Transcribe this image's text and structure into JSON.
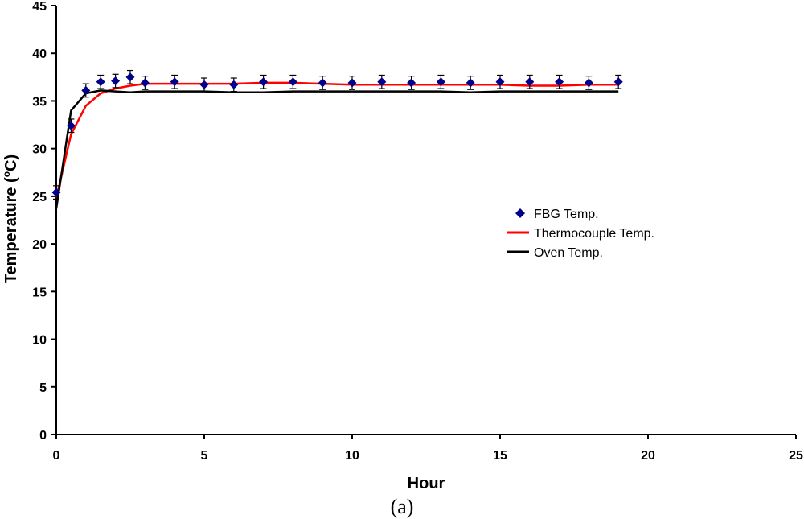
{
  "chart_data": {
    "type": "line",
    "xlabel": "Hour",
    "ylabel": "Temperature (°C)",
    "ylabel_main": "Temperature (",
    "ylabel_sup": "o",
    "ylabel_tail": "C)",
    "caption": "(a)",
    "xlim": [
      0,
      25
    ],
    "ylim": [
      0,
      45
    ],
    "xticks": [
      0,
      5,
      10,
      15,
      20,
      25
    ],
    "yticks": [
      0,
      5,
      10,
      15,
      20,
      25,
      30,
      35,
      40,
      45
    ],
    "grid": false,
    "legend_position": "right",
    "series": [
      {
        "name": "FBG Temp.",
        "kind": "scatter-errorbar",
        "color": "#00008B",
        "x": [
          0,
          0.5,
          1,
          1.5,
          2,
          2.5,
          3,
          4,
          5,
          6,
          7,
          8,
          9,
          10,
          11,
          12,
          13,
          14,
          15,
          16,
          17,
          18,
          19
        ],
        "y": [
          25.4,
          32.4,
          36.1,
          37.0,
          37.1,
          37.5,
          36.9,
          37.0,
          36.7,
          36.7,
          37.0,
          37.0,
          36.9,
          36.9,
          37.0,
          36.9,
          37.0,
          36.9,
          37.0,
          37.0,
          37.0,
          36.9,
          37.0
        ],
        "error": 0.7
      },
      {
        "name": "Thermocouple Temp.",
        "kind": "line",
        "color": "#FF0000",
        "x": [
          0,
          0.5,
          1,
          1.5,
          2,
          2.5,
          3,
          4,
          5,
          6,
          7,
          8,
          9,
          10,
          11,
          12,
          13,
          14,
          15,
          16,
          17,
          18,
          19
        ],
        "y": [
          24.8,
          31.5,
          34.5,
          35.8,
          36.3,
          36.6,
          36.8,
          36.8,
          36.8,
          36.8,
          36.9,
          36.9,
          36.8,
          36.7,
          36.7,
          36.7,
          36.7,
          36.7,
          36.7,
          36.6,
          36.6,
          36.7,
          36.7
        ]
      },
      {
        "name": "Oven Temp.",
        "kind": "line",
        "color": "#000000",
        "x": [
          0,
          0.5,
          1,
          1.5,
          2,
          2.5,
          3,
          4,
          5,
          6,
          7,
          8,
          9,
          10,
          11,
          12,
          13,
          14,
          15,
          16,
          17,
          18,
          19
        ],
        "y": [
          23.7,
          34.0,
          35.8,
          36.1,
          36.0,
          35.9,
          36.0,
          36.0,
          36.0,
          35.9,
          35.9,
          36.0,
          36.0,
          36.0,
          36.0,
          36.0,
          36.0,
          35.9,
          36.0,
          36.0,
          36.0,
          36.0,
          36.0
        ]
      }
    ]
  }
}
